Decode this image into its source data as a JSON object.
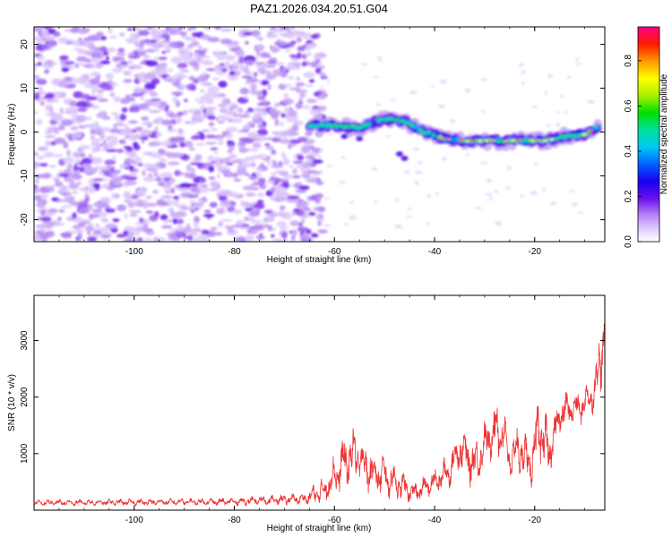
{
  "title": "PAZ1.2026.034.20.51.G04",
  "chart_data": [
    {
      "type": "heatmap",
      "title": "PAZ1.2026.034.20.51.G04",
      "xlabel": "Height of straight line (km)",
      "ylabel": "Frequency (Hz)",
      "xlim": [
        -120,
        -6
      ],
      "ylim": [
        -25,
        24
      ],
      "xticks": [
        -100,
        -80,
        -60,
        -40,
        -20
      ],
      "yticks": [
        -20,
        -10,
        0,
        10,
        20
      ],
      "colorbar": {
        "label": "Normalized spectral amplitude",
        "range": [
          0,
          0.95
        ],
        "ticks": [
          "0.0",
          "0.2",
          "0.4",
          "0.6",
          "0.8"
        ],
        "colormap": [
          "#ffffff",
          "#c7a6f5",
          "#8a3cf0",
          "#3a00e6",
          "#0000ff",
          "#00a0ff",
          "#00e0e0",
          "#00e000",
          "#ffff00",
          "#ff9900",
          "#ff0000",
          "#ff0080"
        ]
      },
      "noise_region_x": [
        -120,
        -65
      ],
      "signal_trace": {
        "x": [
          -65,
          -60,
          -55,
          -50,
          -46,
          -42,
          -38,
          -34,
          -30,
          -26,
          -22,
          -18,
          -14,
          -10,
          -7
        ],
        "frequency_hz": [
          1.5,
          1.5,
          1.0,
          3.0,
          2.5,
          0.0,
          -1.5,
          -2.0,
          -2.0,
          -2.0,
          -2.0,
          -2.0,
          -1.0,
          -0.5,
          1.5
        ]
      }
    },
    {
      "type": "line",
      "xlabel": "Height of straight line (km)",
      "ylabel": "SNR (10 * v/v)",
      "xlim": [
        -120,
        -6
      ],
      "ylim": [
        0,
        3800
      ],
      "xticks": [
        -100,
        -80,
        -60,
        -40,
        -20
      ],
      "yticks": [
        1000,
        2000,
        3000
      ],
      "color": "#ee3333",
      "envelope": {
        "x": [
          -120,
          -100,
          -80,
          -66,
          -62,
          -58,
          -56,
          -53,
          -50,
          -47,
          -44,
          -40,
          -37,
          -35,
          -32,
          -29,
          -27,
          -25,
          -23,
          -21,
          -19,
          -17,
          -15,
          -13,
          -11,
          -9,
          -8,
          -7,
          -6
        ],
        "mean": [
          130,
          140,
          150,
          200,
          350,
          850,
          1000,
          700,
          600,
          450,
          300,
          500,
          700,
          1100,
          800,
          1300,
          1500,
          900,
          1100,
          800,
          1400,
          1000,
          1700,
          1800,
          1800,
          2000,
          2100,
          2600,
          3200
        ],
        "amp": [
          60,
          60,
          70,
          110,
          250,
          500,
          500,
          400,
          400,
          300,
          200,
          250,
          300,
          400,
          450,
          400,
          700,
          300,
          500,
          400,
          800,
          400,
          400,
          300,
          300,
          300,
          400,
          700,
          400
        ]
      }
    }
  ]
}
